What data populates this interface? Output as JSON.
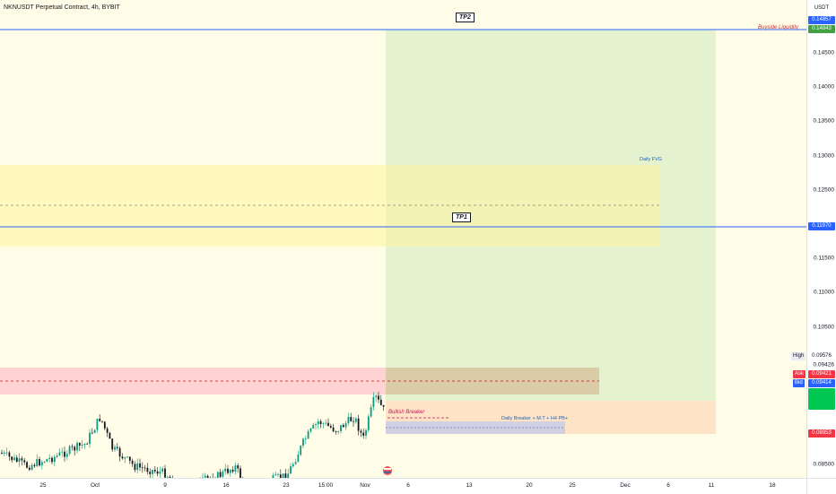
{
  "header": {
    "title": "NKNUSDT Perpetual Contract, 4h, BYBIT"
  },
  "price_scale": {
    "currency": "USDT",
    "ticks": [
      "0.14500",
      "0.14000",
      "0.13500",
      "0.13000",
      "0.12500",
      "0.12000",
      "0.11500",
      "0.11000",
      "0.10500",
      "0.08500"
    ]
  },
  "time_axis": {
    "labels": [
      "25",
      "Oct",
      "9",
      "16",
      "23",
      "15:00",
      "Nov",
      "6",
      "13",
      "20",
      "25",
      "Dec",
      "6",
      "11",
      "18"
    ]
  },
  "price_labels": {
    "top1": "0.14857",
    "top2": "0.14843",
    "tp1": "0.11970",
    "high_value": "0.09576",
    "high_label": "High",
    "v1": "0.09426",
    "ask_label": "Ask",
    "ask_value": "0.09421",
    "bid_label": "Bid",
    "bid_value": "0.09414",
    "last": "0.08953"
  },
  "annotations": {
    "tp2": "TP2",
    "tp1": "TP1",
    "buyside": "Buyside Liquidity",
    "daily_fvg": "Daily FVG",
    "bullish_breaker": "Bullish Breaker",
    "daily_breaker": "Daily Breaker + M.T + H4 PB+"
  },
  "colors": {
    "background": "#fffde7",
    "up": "#089981",
    "down": "#131722",
    "blue_line": "#2962ff",
    "green": "#26a69a",
    "red": "#f23645"
  }
}
